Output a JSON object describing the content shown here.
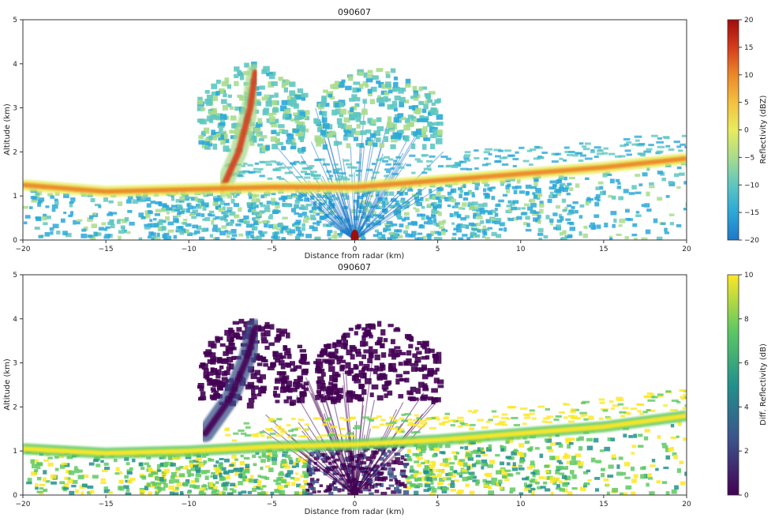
{
  "chart_data": [
    {
      "type": "heatmap",
      "title": "090607",
      "xlabel": "Distance from radar (km)",
      "ylabel": "Altitude (km)",
      "xlim": [
        -20,
        20
      ],
      "ylim": [
        0,
        5
      ],
      "x_ticks": [
        -20,
        -15,
        -10,
        -5,
        0,
        5,
        10,
        15,
        20
      ],
      "y_ticks": [
        0,
        1,
        2,
        3,
        4,
        5
      ],
      "colorbar": {
        "label": "Reflectivity (dBZ)",
        "colormap": "jet-like",
        "range": [
          -20,
          20
        ],
        "ticks": [
          -20,
          -15,
          -10,
          -5,
          0,
          5,
          10,
          15,
          20
        ],
        "colors": [
          "#1f78c8",
          "#2aa8d8",
          "#5ec6c0",
          "#a8dc8c",
          "#e8ec5c",
          "#f4c040",
          "#ec8828",
          "#d43c1c",
          "#a00c0c"
        ]
      },
      "features": {
        "bright_band_left": [
          [
            -20,
            1.25
          ],
          [
            -15,
            1.1
          ],
          [
            -10,
            1.15
          ],
          [
            -5,
            1.2
          ],
          [
            0,
            1.2
          ]
        ],
        "bright_band_right": [
          [
            0,
            1.2
          ],
          [
            5,
            1.35
          ],
          [
            10,
            1.5
          ],
          [
            15,
            1.65
          ],
          [
            20,
            1.85
          ]
        ],
        "fall_streak": [
          [
            -8,
            1.15
          ],
          [
            -7,
            2.0
          ],
          [
            -6.3,
            3.0
          ],
          [
            -6,
            3.8
          ]
        ],
        "cloud_top_km": 4.0
      }
    },
    {
      "type": "heatmap",
      "title": "090607",
      "xlabel": "Distance from radar (km)",
      "ylabel": "Altitude (km)",
      "xlim": [
        -20,
        20
      ],
      "ylim": [
        0,
        5
      ],
      "x_ticks": [
        -20,
        -15,
        -10,
        -5,
        0,
        5,
        10,
        15,
        20
      ],
      "y_ticks": [
        0,
        1,
        2,
        3,
        4,
        5
      ],
      "colorbar": {
        "label": "Diff. Reflectivity (dB)",
        "colormap": "viridis",
        "range": [
          0,
          10
        ],
        "ticks": [
          0,
          2,
          4,
          6,
          8,
          10
        ],
        "colors": [
          "#440154",
          "#3b528b",
          "#21918c",
          "#5ec962",
          "#fde725"
        ]
      },
      "features": {
        "bright_band_left": [
          [
            -20,
            1.05
          ],
          [
            -15,
            0.95
          ],
          [
            -10,
            1.0
          ],
          [
            -5,
            1.1
          ],
          [
            0,
            1.15
          ]
        ],
        "bright_band_right": [
          [
            0,
            1.15
          ],
          [
            5,
            1.25
          ],
          [
            10,
            1.4
          ],
          [
            15,
            1.55
          ],
          [
            20,
            1.8
          ]
        ],
        "fall_streak": [
          [
            -9,
            1.4
          ],
          [
            -7.5,
            2.2
          ],
          [
            -6.5,
            3.1
          ],
          [
            -6,
            3.8
          ]
        ],
        "cloud_top_km": 4.0
      }
    }
  ]
}
